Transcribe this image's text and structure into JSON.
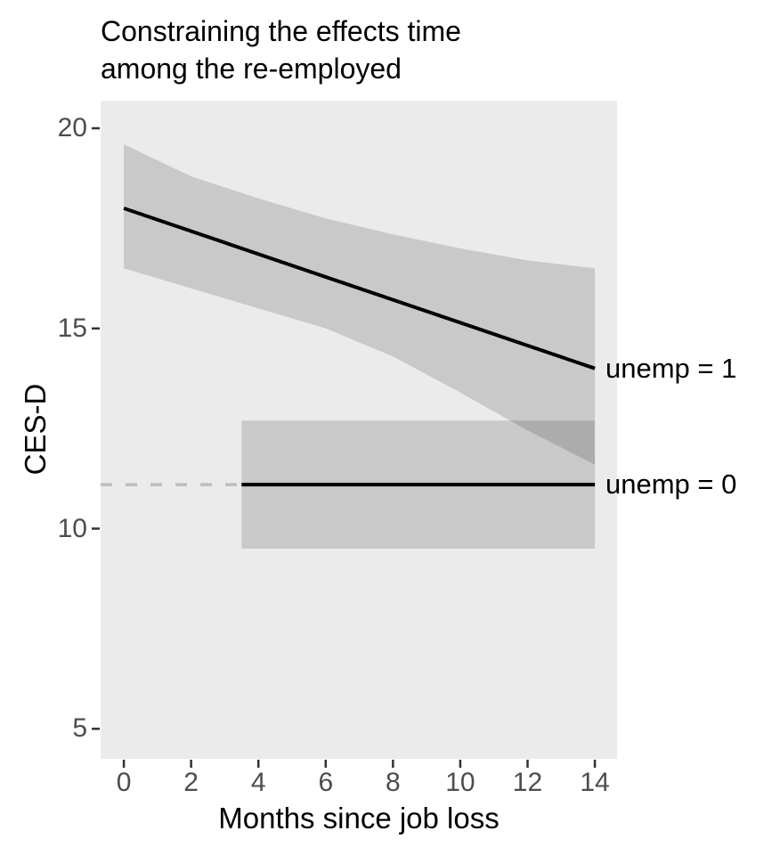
{
  "title": {
    "line1": "Constraining the effects time",
    "line2": "among the re-employed"
  },
  "axes": {
    "y_label": "CES-D",
    "x_label": "Months since job loss"
  },
  "annotations": [
    {
      "text": "unemp = 1"
    },
    {
      "text": "unemp = 0"
    }
  ],
  "colors": {
    "background": "#FFFFFF",
    "panel_bg": "#EBEBEB",
    "ribbon": "rgba(0,0,0,0.14)",
    "line": "#000000",
    "dashed_line": "#BDBDBD",
    "tick": "#333333",
    "tick_label": "#4D4D4D",
    "text": "#000000"
  },
  "chart_data": {
    "type": "line",
    "title": "Constraining the effects time among the re-employed",
    "xlabel": "Months since job loss",
    "ylabel": "CES-D",
    "xlim": [
      -0.69,
      14.66
    ],
    "ylim": [
      4.25,
      20.69
    ],
    "x_ticks": [
      0,
      2,
      4,
      6,
      8,
      10,
      12,
      14
    ],
    "y_ticks": [
      5,
      10,
      15,
      20
    ],
    "grid": false,
    "legend": "none (direct right-side labels)",
    "series": [
      {
        "name": "unemp = 1",
        "style": "solid",
        "x": [
          0,
          14
        ],
        "y": [
          18.0,
          14.0
        ],
        "ci": {
          "x": [
            0,
            2,
            4,
            6,
            8,
            10,
            12,
            14
          ],
          "upper": [
            19.6,
            18.8,
            18.25,
            17.75,
            17.35,
            17.0,
            16.7,
            16.5
          ],
          "lower": [
            16.5,
            16.0,
            15.5,
            15.0,
            14.3,
            13.4,
            12.45,
            11.6
          ]
        }
      },
      {
        "name": "unemp = 0",
        "style": "solid",
        "x": [
          3.5,
          14
        ],
        "y": [
          11.1,
          11.1
        ],
        "ci": {
          "x": [
            3.5,
            14
          ],
          "upper": [
            12.7,
            12.7
          ],
          "lower": [
            9.5,
            9.5
          ]
        }
      },
      {
        "name": "unemp = 0 dashed extension",
        "style": "dashed",
        "x": [
          -0.69,
          3.5
        ],
        "y": [
          11.1,
          11.1
        ]
      }
    ]
  }
}
